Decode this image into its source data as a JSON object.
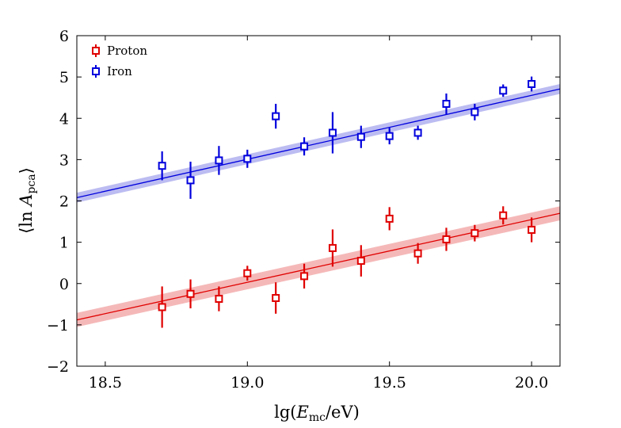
{
  "chart_data": {
    "type": "scatter",
    "xlabel_parts": [
      "lg(",
      "E",
      "mc",
      "/eV)"
    ],
    "ylabel_parts": [
      "⟨ln ",
      "A",
      "pca",
      "⟩"
    ],
    "xlim": [
      18.4,
      20.1
    ],
    "ylim": [
      -2,
      6
    ],
    "xticks": [
      {
        "value": 18.5,
        "label": "18.5"
      },
      {
        "value": 19.0,
        "label": "19.0"
      },
      {
        "value": 19.5,
        "label": "19.5"
      },
      {
        "value": 20.0,
        "label": "20.0"
      }
    ],
    "yticks": [
      {
        "value": -2,
        "label": "−2"
      },
      {
        "value": -1,
        "label": "−1"
      },
      {
        "value": 0,
        "label": "0"
      },
      {
        "value": 1,
        "label": "1"
      },
      {
        "value": 2,
        "label": "2"
      },
      {
        "value": 3,
        "label": "3"
      },
      {
        "value": 4,
        "label": "4"
      },
      {
        "value": 5,
        "label": "5"
      },
      {
        "value": 6,
        "label": "6"
      }
    ],
    "legend_position": "top-left",
    "series": [
      {
        "name": "Proton",
        "color": "#e00000",
        "band_color": "#f2a0a0",
        "x": [
          18.7,
          18.8,
          18.9,
          19.0,
          19.1,
          19.2,
          19.3,
          19.4,
          19.5,
          19.6,
          19.7,
          19.8,
          19.9,
          20.0
        ],
        "y": [
          -0.57,
          -0.25,
          -0.37,
          0.25,
          -0.35,
          0.18,
          0.86,
          0.55,
          1.57,
          0.73,
          1.07,
          1.22,
          1.65,
          1.3
        ],
        "yerr": [
          0.5,
          0.35,
          0.3,
          0.18,
          0.38,
          0.3,
          0.45,
          0.38,
          0.28,
          0.25,
          0.28,
          0.2,
          0.22,
          0.3
        ],
        "fit": {
          "x": [
            18.4,
            20.1
          ],
          "y": [
            -0.88,
            1.7
          ],
          "band": 0.17
        }
      },
      {
        "name": "Iron",
        "color": "#0000dd",
        "band_color": "#a6a6ee",
        "x": [
          18.7,
          18.8,
          18.9,
          19.0,
          19.1,
          19.2,
          19.3,
          19.4,
          19.5,
          19.6,
          19.7,
          19.8,
          19.9,
          20.0
        ],
        "y": [
          2.85,
          2.5,
          2.98,
          3.02,
          4.05,
          3.32,
          3.65,
          3.55,
          3.57,
          3.65,
          4.35,
          4.15,
          4.67,
          4.83
        ],
        "yerr": [
          0.35,
          0.45,
          0.35,
          0.22,
          0.3,
          0.22,
          0.5,
          0.27,
          0.2,
          0.17,
          0.25,
          0.2,
          0.15,
          0.18
        ],
        "fit": {
          "x": [
            18.4,
            20.1
          ],
          "y": [
            2.08,
            4.71
          ],
          "band": 0.12
        }
      }
    ]
  }
}
